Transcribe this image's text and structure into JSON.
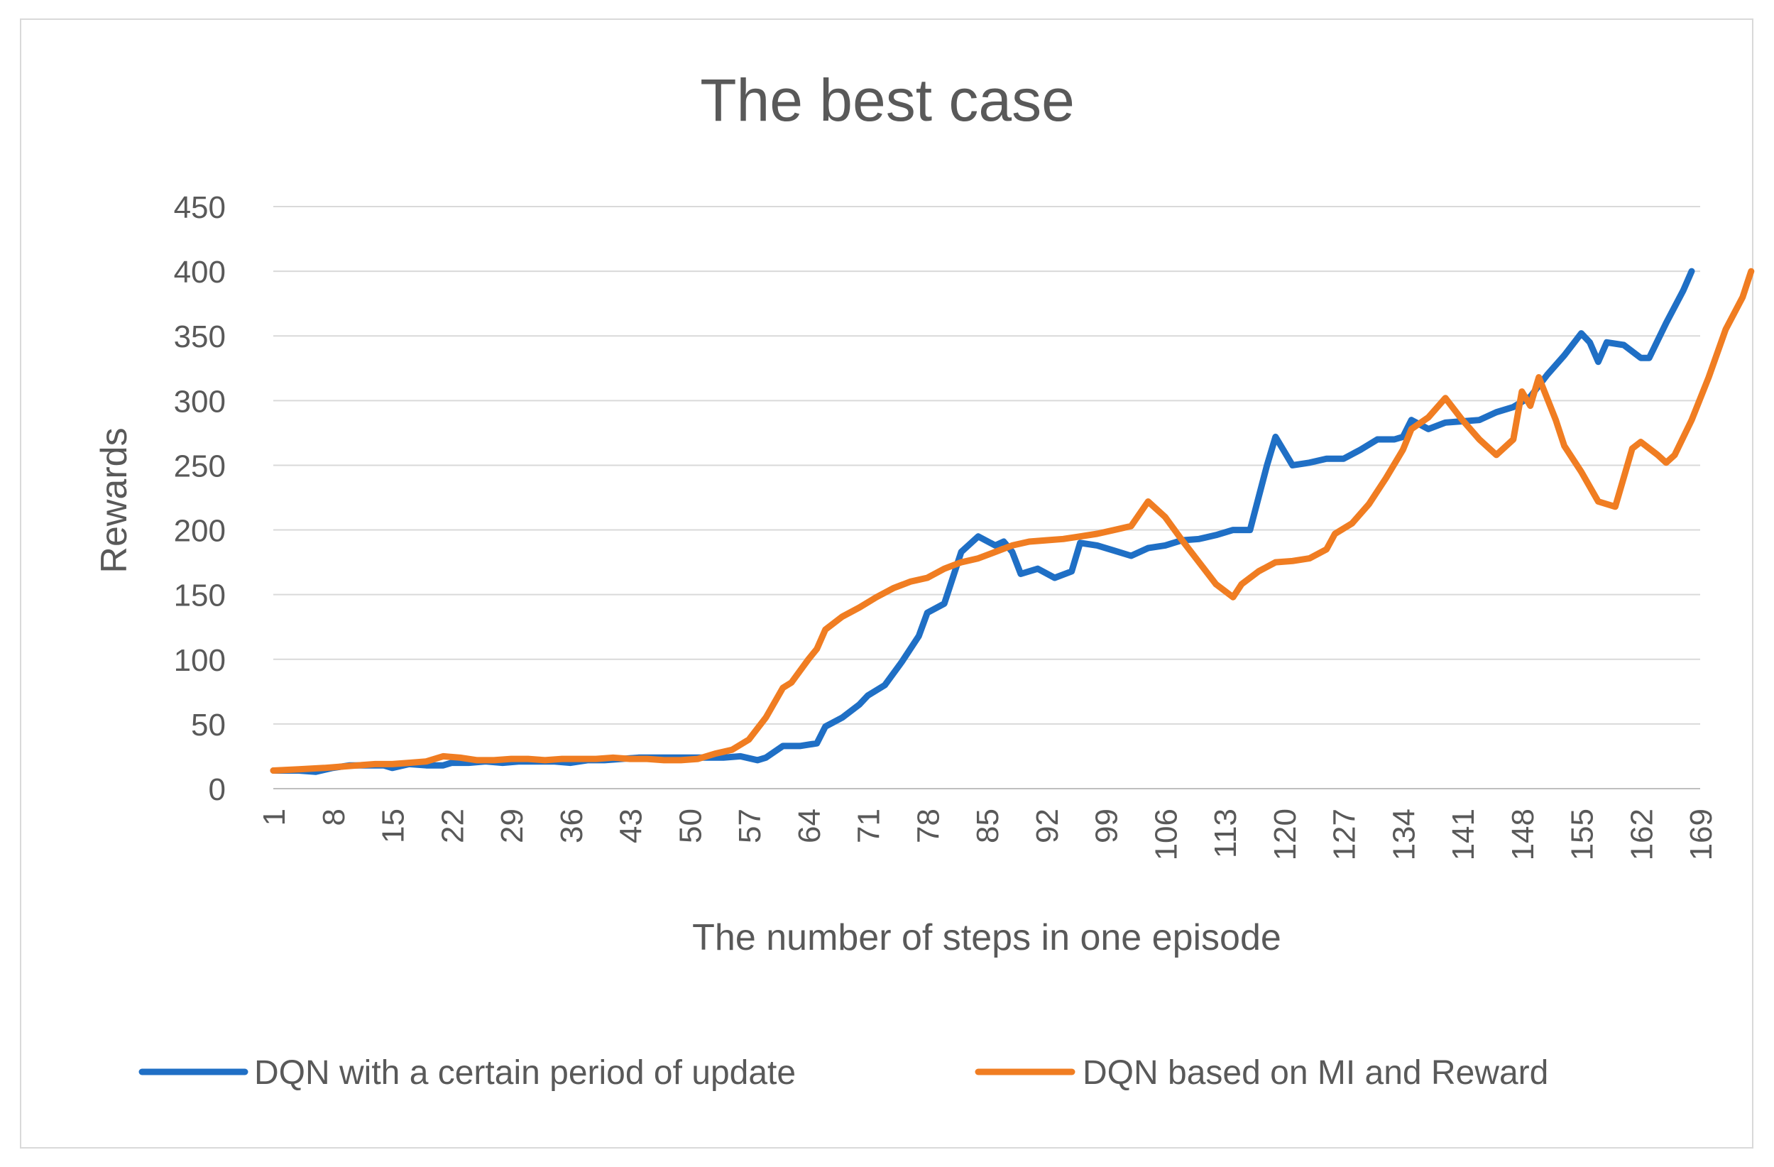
{
  "chart_data": {
    "type": "line",
    "title": "The best case",
    "xlabel": "The number of steps in one episode",
    "ylabel": "Rewards",
    "xlim": [
      1,
      169
    ],
    "ylim": [
      0,
      450
    ],
    "y_ticks": [
      0,
      50,
      100,
      150,
      200,
      250,
      300,
      350,
      400,
      450
    ],
    "x_tick_labels": [
      "1",
      "8",
      "15",
      "22",
      "29",
      "36",
      "43",
      "50",
      "57",
      "64",
      "71",
      "78",
      "85",
      "92",
      "99",
      "106",
      "113",
      "120",
      "127",
      "134",
      "141",
      "148",
      "155",
      "162",
      "169"
    ],
    "grid": "horizontal",
    "legend_position": "bottom",
    "series": [
      {
        "name": "DQN with a certain period of update",
        "color": "#1f6fc5",
        "points": [
          [
            1,
            14
          ],
          [
            4,
            14
          ],
          [
            6,
            13
          ],
          [
            8,
            16
          ],
          [
            10,
            18
          ],
          [
            12,
            18
          ],
          [
            14,
            18
          ],
          [
            15,
            16
          ],
          [
            17,
            19
          ],
          [
            19,
            18
          ],
          [
            21,
            18
          ],
          [
            22,
            20
          ],
          [
            24,
            20
          ],
          [
            26,
            21
          ],
          [
            28,
            20
          ],
          [
            30,
            21
          ],
          [
            32,
            21
          ],
          [
            34,
            21
          ],
          [
            36,
            20
          ],
          [
            38,
            22
          ],
          [
            40,
            22
          ],
          [
            42,
            23
          ],
          [
            44,
            24
          ],
          [
            46,
            24
          ],
          [
            48,
            24
          ],
          [
            50,
            24
          ],
          [
            52,
            24
          ],
          [
            54,
            24
          ],
          [
            56,
            25
          ],
          [
            58,
            22
          ],
          [
            59,
            24
          ],
          [
            61,
            33
          ],
          [
            63,
            33
          ],
          [
            65,
            35
          ],
          [
            66,
            48
          ],
          [
            68,
            55
          ],
          [
            70,
            65
          ],
          [
            71,
            72
          ],
          [
            73,
            80
          ],
          [
            75,
            98
          ],
          [
            77,
            118
          ],
          [
            78,
            136
          ],
          [
            80,
            143
          ],
          [
            82,
            183
          ],
          [
            84,
            195
          ],
          [
            86,
            188
          ],
          [
            87,
            191
          ],
          [
            88,
            183
          ],
          [
            89,
            166
          ],
          [
            91,
            170
          ],
          [
            93,
            163
          ],
          [
            95,
            168
          ],
          [
            96,
            190
          ],
          [
            98,
            188
          ],
          [
            100,
            184
          ],
          [
            102,
            180
          ],
          [
            104,
            186
          ],
          [
            106,
            188
          ],
          [
            108,
            192
          ],
          [
            110,
            193
          ],
          [
            112,
            196
          ],
          [
            114,
            200
          ],
          [
            116,
            200
          ],
          [
            118,
            250
          ],
          [
            119,
            272
          ],
          [
            121,
            250
          ],
          [
            123,
            252
          ],
          [
            125,
            255
          ],
          [
            127,
            255
          ],
          [
            129,
            262
          ],
          [
            131,
            270
          ],
          [
            133,
            270
          ],
          [
            134,
            272
          ],
          [
            135,
            285
          ],
          [
            137,
            278
          ],
          [
            139,
            283
          ],
          [
            141,
            284
          ],
          [
            143,
            285
          ],
          [
            145,
            291
          ],
          [
            147,
            295
          ],
          [
            149,
            303
          ],
          [
            151,
            320
          ],
          [
            153,
            335
          ],
          [
            155,
            352
          ],
          [
            156,
            345
          ],
          [
            157,
            330
          ],
          [
            158,
            345
          ],
          [
            160,
            343
          ],
          [
            162,
            333
          ],
          [
            163,
            333
          ],
          [
            165,
            360
          ],
          [
            167,
            385
          ],
          [
            168,
            400
          ]
        ]
      },
      {
        "name": "DQN based on MI and Reward",
        "color": "#f07d22",
        "points": [
          [
            1,
            14
          ],
          [
            4,
            15
          ],
          [
            7,
            16
          ],
          [
            9,
            17
          ],
          [
            11,
            18
          ],
          [
            13,
            19
          ],
          [
            15,
            19
          ],
          [
            17,
            20
          ],
          [
            19,
            21
          ],
          [
            21,
            25
          ],
          [
            23,
            24
          ],
          [
            25,
            22
          ],
          [
            27,
            22
          ],
          [
            29,
            23
          ],
          [
            31,
            23
          ],
          [
            33,
            22
          ],
          [
            35,
            23
          ],
          [
            37,
            23
          ],
          [
            39,
            23
          ],
          [
            41,
            24
          ],
          [
            43,
            23
          ],
          [
            45,
            23
          ],
          [
            47,
            22
          ],
          [
            49,
            22
          ],
          [
            51,
            23
          ],
          [
            53,
            27
          ],
          [
            55,
            30
          ],
          [
            57,
            38
          ],
          [
            59,
            55
          ],
          [
            61,
            78
          ],
          [
            62,
            82
          ],
          [
            64,
            100
          ],
          [
            65,
            108
          ],
          [
            66,
            123
          ],
          [
            68,
            133
          ],
          [
            70,
            140
          ],
          [
            72,
            148
          ],
          [
            74,
            155
          ],
          [
            76,
            160
          ],
          [
            78,
            163
          ],
          [
            80,
            170
          ],
          [
            82,
            175
          ],
          [
            84,
            178
          ],
          [
            86,
            183
          ],
          [
            88,
            188
          ],
          [
            90,
            191
          ],
          [
            92,
            192
          ],
          [
            94,
            193
          ],
          [
            96,
            195
          ],
          [
            98,
            197
          ],
          [
            100,
            200
          ],
          [
            102,
            203
          ],
          [
            104,
            222
          ],
          [
            106,
            210
          ],
          [
            108,
            192
          ],
          [
            110,
            175
          ],
          [
            112,
            158
          ],
          [
            114,
            148
          ],
          [
            115,
            158
          ],
          [
            117,
            168
          ],
          [
            119,
            175
          ],
          [
            121,
            176
          ],
          [
            123,
            178
          ],
          [
            125,
            185
          ],
          [
            126,
            197
          ],
          [
            128,
            205
          ],
          [
            130,
            220
          ],
          [
            132,
            240
          ],
          [
            134,
            262
          ],
          [
            135,
            278
          ],
          [
            137,
            287
          ],
          [
            139,
            302
          ],
          [
            141,
            285
          ],
          [
            143,
            270
          ],
          [
            145,
            258
          ],
          [
            147,
            270
          ],
          [
            148,
            307
          ],
          [
            149,
            296
          ],
          [
            150,
            318
          ],
          [
            152,
            285
          ],
          [
            153,
            265
          ],
          [
            155,
            245
          ],
          [
            157,
            222
          ],
          [
            159,
            218
          ],
          [
            161,
            263
          ],
          [
            162,
            268
          ],
          [
            164,
            258
          ],
          [
            165,
            252
          ],
          [
            166,
            258
          ],
          [
            168,
            285
          ],
          [
            170,
            318
          ],
          [
            172,
            355
          ],
          [
            174,
            380
          ],
          [
            175,
            400
          ]
        ]
      }
    ]
  }
}
